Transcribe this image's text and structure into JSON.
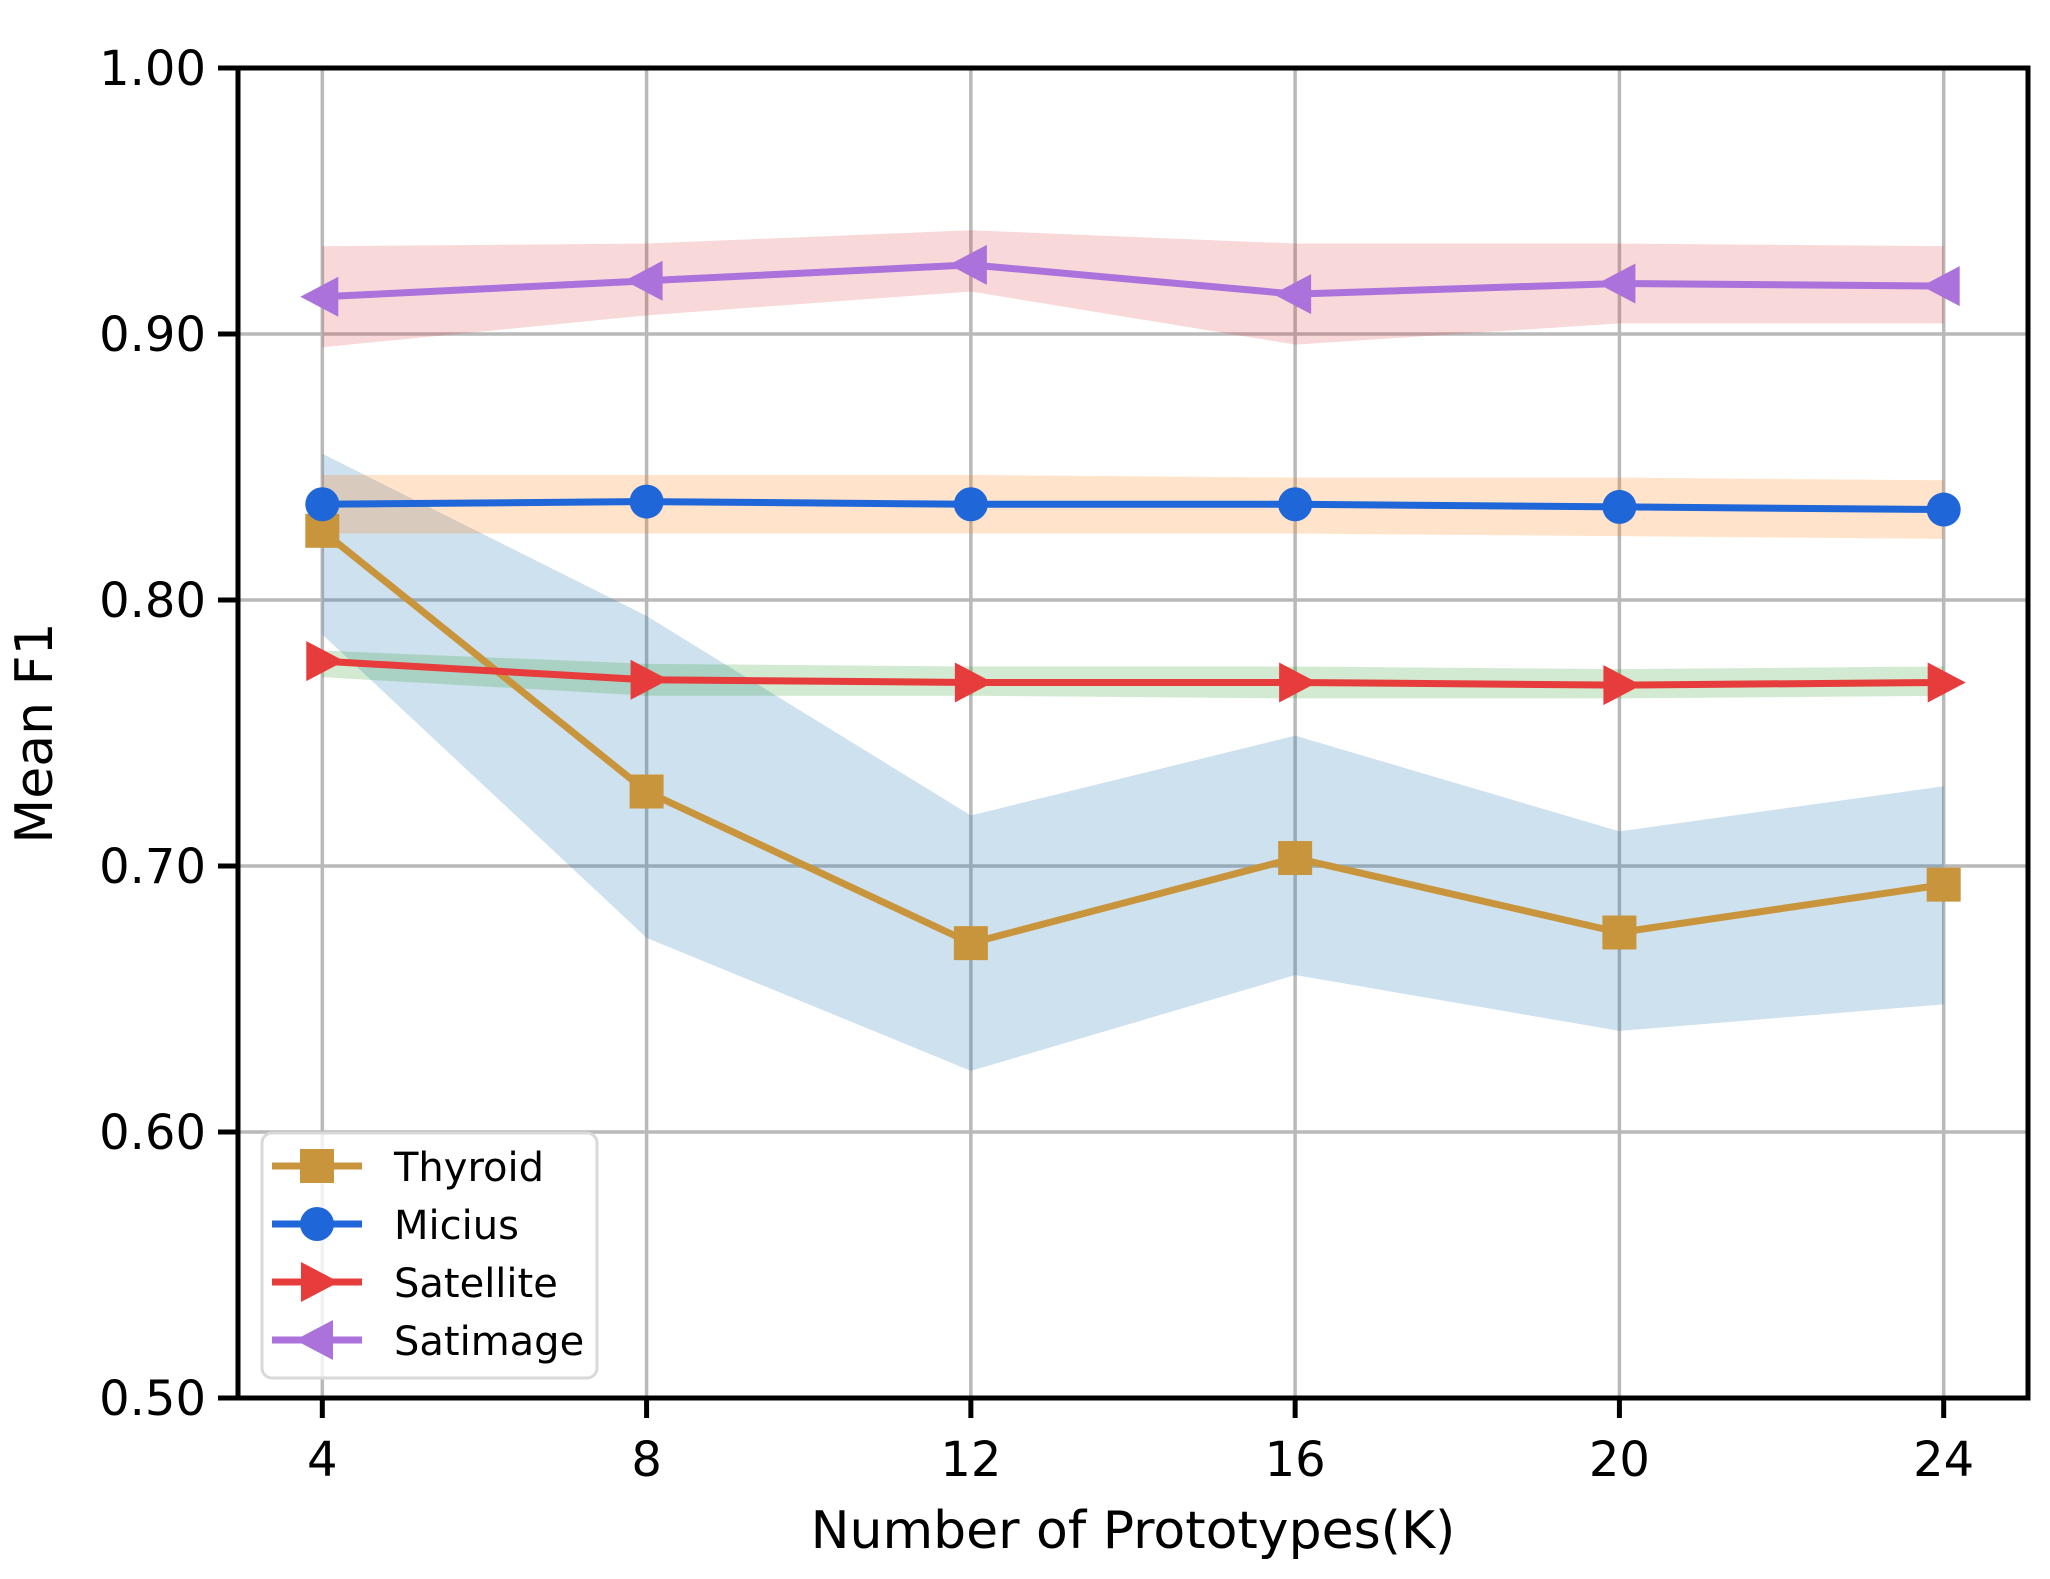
{
  "figure": {
    "title": "",
    "background": "#ffffff"
  },
  "chart_data": {
    "type": "line",
    "x": [
      4,
      8,
      12,
      16,
      20,
      24
    ],
    "xlabel": "Number of Prototypes(K)",
    "ylabel": "Mean F1",
    "xlim": [
      2.96,
      25.04
    ],
    "ylim": [
      0.5,
      1.0
    ],
    "xticks": [
      4,
      8,
      12,
      16,
      20,
      24
    ],
    "ytick_values": [
      0.5,
      0.6,
      0.7,
      0.8,
      0.9,
      1.0
    ],
    "yticks": [
      "0.50",
      "0.60",
      "0.70",
      "0.80",
      "0.90",
      "1.00"
    ],
    "grid": true,
    "grid_color": "#b9b9b9",
    "spine_color": "#000000",
    "legend_position": "lower-left",
    "series": [
      {
        "name": "Thyroid",
        "color": "#c9953c",
        "marker": "square",
        "band_color": "rgba(31,119,180,0.22)",
        "values": [
          0.826,
          0.728,
          0.671,
          0.703,
          0.675,
          0.693
        ],
        "band_lower": [
          0.787,
          0.673,
          0.623,
          0.659,
          0.638,
          0.648
        ],
        "band_upper": [
          0.855,
          0.794,
          0.719,
          0.749,
          0.713,
          0.73
        ]
      },
      {
        "name": "Micius",
        "color": "#1f66d9",
        "marker": "circle",
        "band_color": "rgba(255,127,14,0.22)",
        "values": [
          0.836,
          0.837,
          0.836,
          0.836,
          0.835,
          0.834
        ],
        "band_lower": [
          0.825,
          0.825,
          0.825,
          0.825,
          0.824,
          0.823
        ],
        "band_upper": [
          0.847,
          0.847,
          0.847,
          0.846,
          0.846,
          0.845
        ]
      },
      {
        "name": "Satellite",
        "color": "#e73c3c",
        "marker": "triangle-right",
        "band_color": "rgba(44,160,44,0.22)",
        "values": [
          0.777,
          0.77,
          0.769,
          0.769,
          0.768,
          0.769
        ],
        "band_lower": [
          0.771,
          0.764,
          0.764,
          0.763,
          0.763,
          0.764
        ],
        "band_upper": [
          0.781,
          0.776,
          0.775,
          0.775,
          0.774,
          0.775
        ]
      },
      {
        "name": "Satimage",
        "color": "#ab72db",
        "marker": "triangle-left",
        "band_color": "rgba(214,39,40,0.18)",
        "values": [
          0.914,
          0.92,
          0.926,
          0.915,
          0.919,
          0.918
        ],
        "band_lower": [
          0.895,
          0.907,
          0.916,
          0.896,
          0.904,
          0.904
        ],
        "band_upper": [
          0.933,
          0.934,
          0.939,
          0.934,
          0.934,
          0.933
        ]
      }
    ]
  },
  "legend": {
    "items": [
      "Thyroid",
      "Micius",
      "Satellite",
      "Satimage"
    ]
  }
}
